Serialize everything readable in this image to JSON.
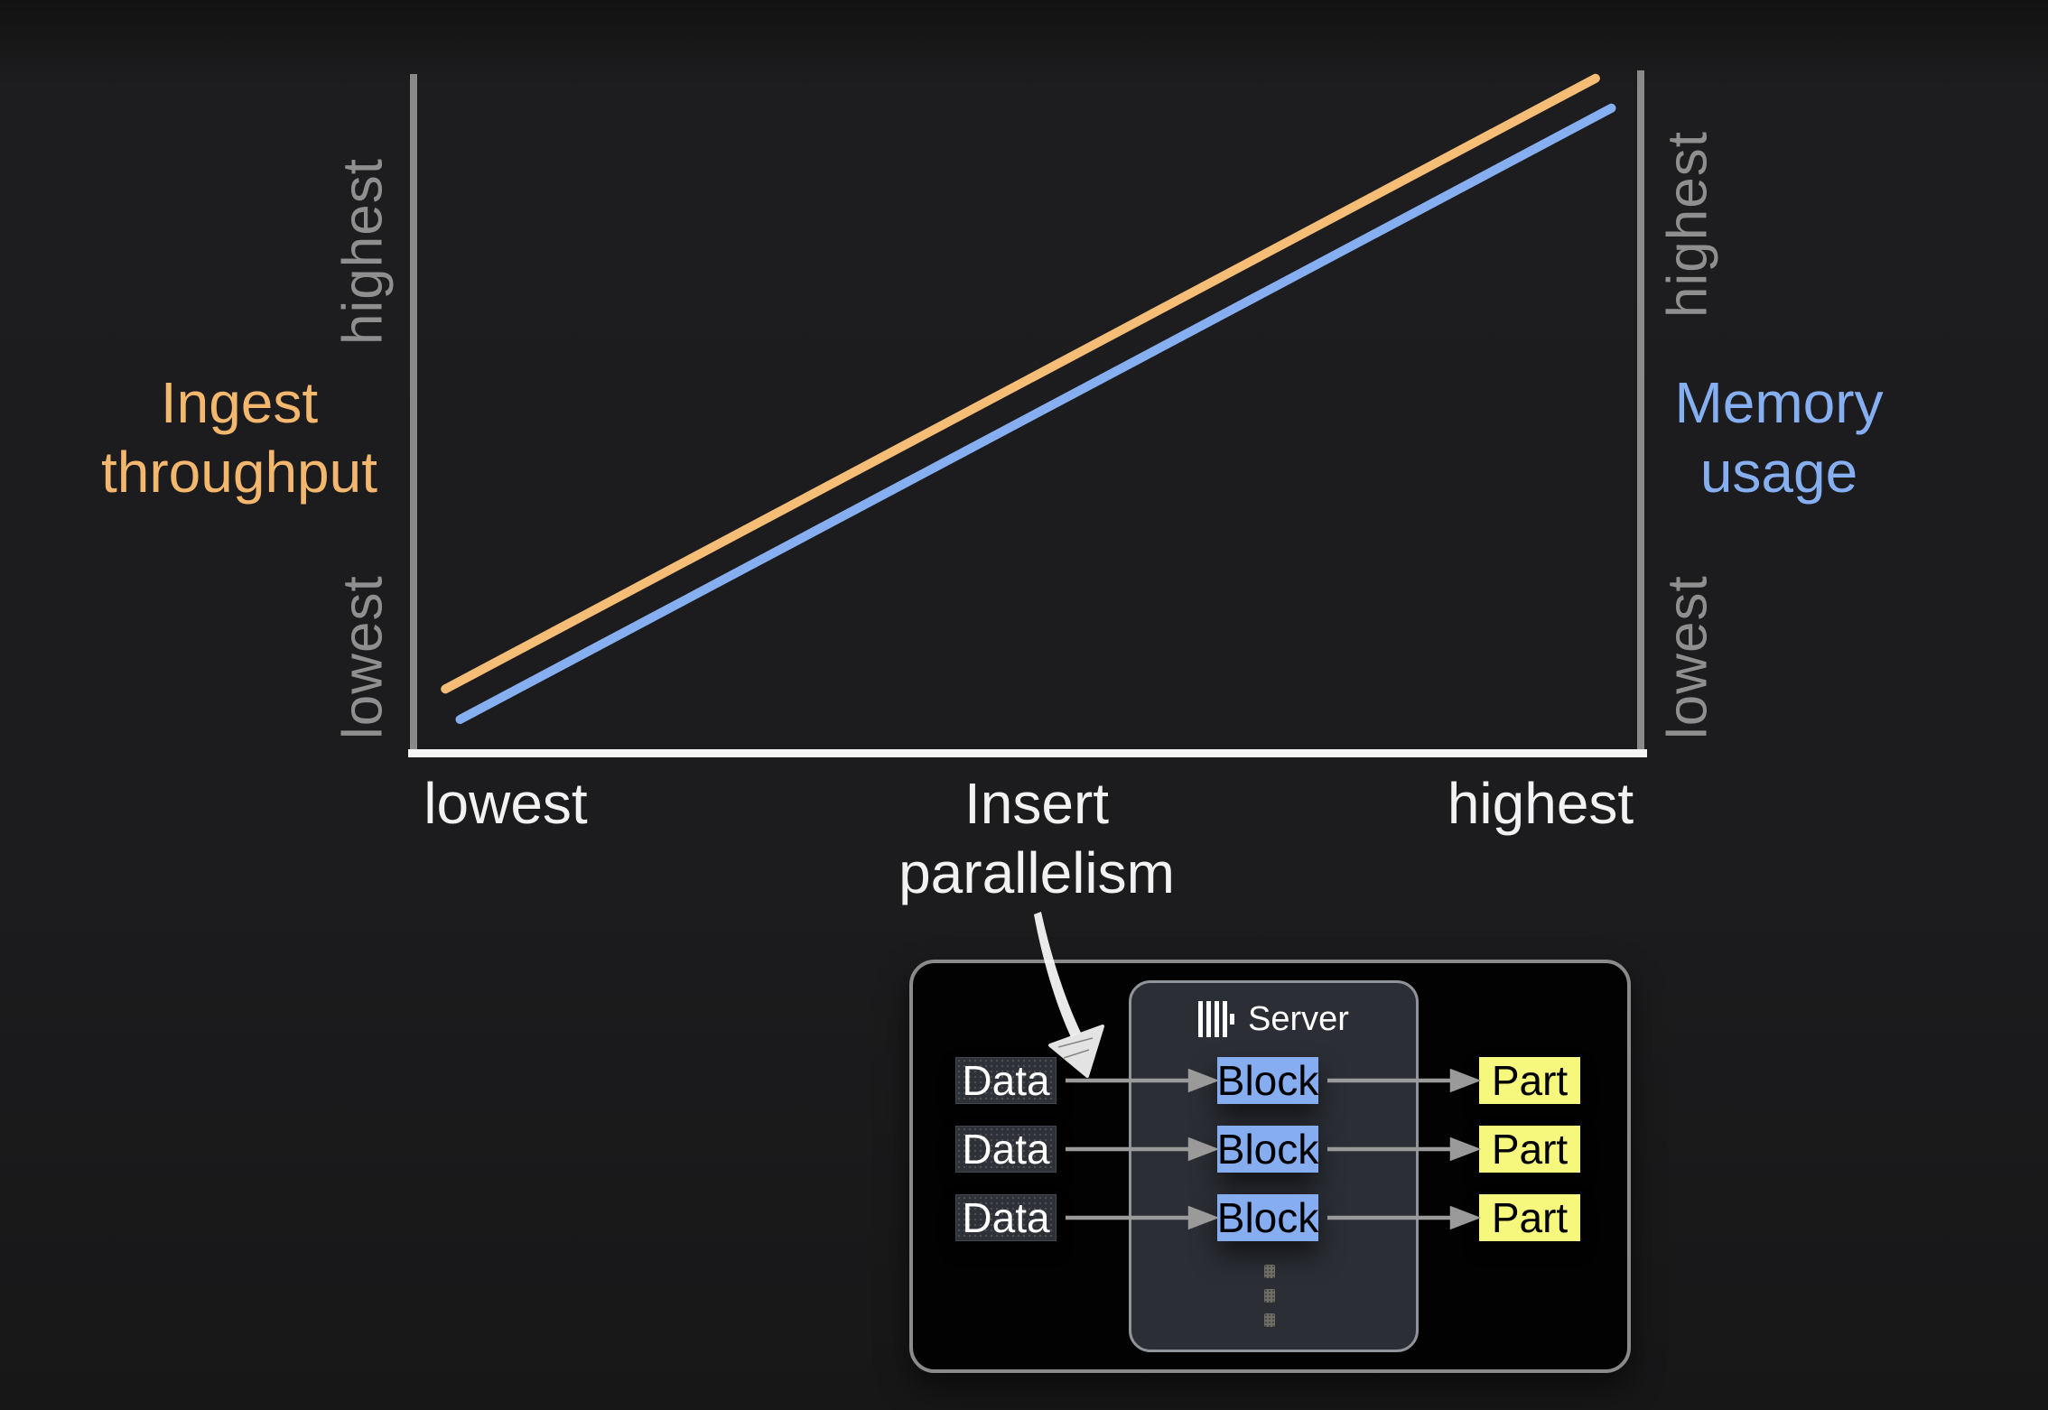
{
  "chart_data": {
    "type": "line",
    "title": "",
    "x_axis": {
      "label": "Insert parallelism",
      "tick_labels": [
        "lowest",
        "highest"
      ]
    },
    "y_axis_left": {
      "label": "Ingest throughput",
      "tick_labels": [
        "lowest",
        "highest"
      ],
      "color": "#f3b76e"
    },
    "y_axis_right": {
      "label": "Memory usage",
      "tick_labels": [
        "lowest",
        "highest"
      ],
      "color": "#86aff2"
    },
    "grid": false,
    "legend": "none",
    "series": [
      {
        "name": "Ingest throughput",
        "axis": "left",
        "color": "#f6bd76",
        "trend": "linear increasing",
        "points_norm": [
          [
            0.026,
            0.089
          ],
          [
            0.966,
            0.991
          ]
        ]
      },
      {
        "name": "Memory usage",
        "axis": "right",
        "color": "#86aff2",
        "trend": "linear increasing",
        "points_norm": [
          [
            0.038,
            0.044
          ],
          [
            0.979,
            0.947
          ]
        ]
      }
    ]
  },
  "labels": {
    "left_axis_top": "highest",
    "left_axis_bottom": "lowest",
    "right_axis_top": "highest",
    "right_axis_bottom": "lowest",
    "left_axis_title": "Ingest throughput",
    "right_axis_title": "Memory usage",
    "x_tick_left": "lowest",
    "x_axis_title": "Insert parallelism",
    "x_tick_right": "highest"
  },
  "diagram": {
    "server": {
      "label": "Server",
      "icon": "clickhouse-logo-icon"
    },
    "rows": [
      {
        "input": "Data",
        "stage": "Block",
        "output": "Part"
      },
      {
        "input": "Data",
        "stage": "Block",
        "output": "Part"
      },
      {
        "input": "Data",
        "stage": "Block",
        "output": "Part"
      }
    ]
  },
  "colors": {
    "background": "#1c1c1e",
    "axis_gray": "#8a8a8a",
    "axis_white": "#f5f5f5",
    "tick_gray": "#8f8f8f",
    "orange": "#f6bd76",
    "blue": "#86aff2",
    "block_fill": "#85adf0",
    "part_fill": "#f6f77d"
  }
}
